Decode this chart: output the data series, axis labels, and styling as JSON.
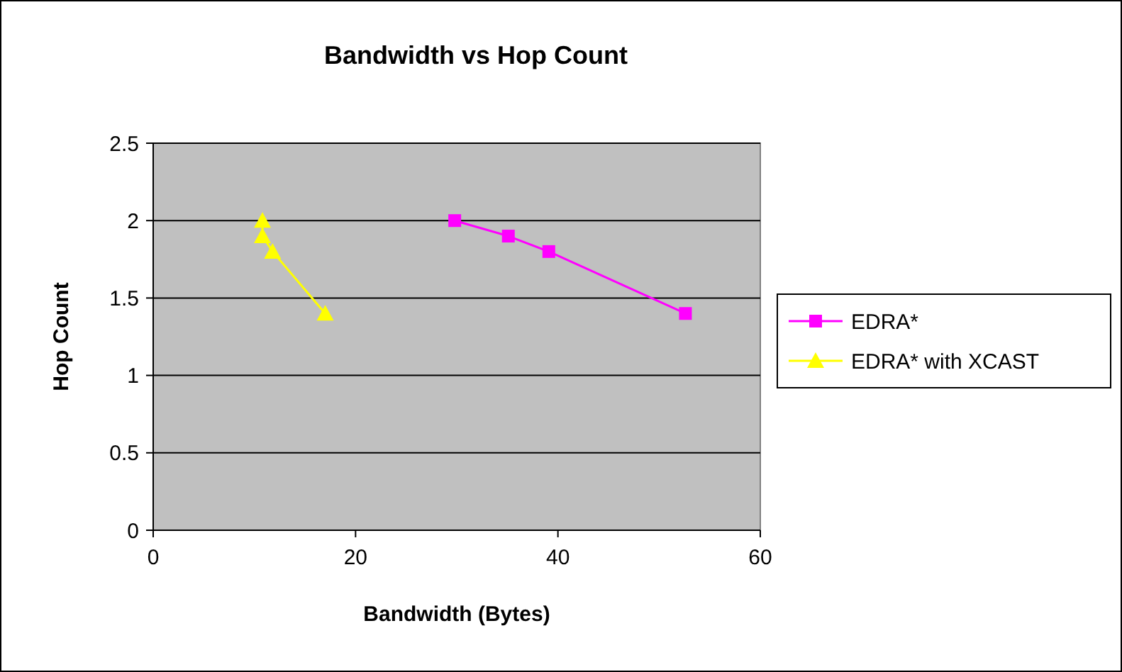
{
  "chart_data": {
    "type": "line",
    "title": "Bandwidth vs Hop Count",
    "xlabel": "Bandwidth (Bytes)",
    "ylabel": "Hop Count",
    "xlim": [
      0,
      60
    ],
    "xticks": [
      0,
      20,
      40,
      60
    ],
    "ylim": [
      0,
      2.5
    ],
    "yticks": [
      0,
      0.5,
      1,
      1.5,
      2,
      2.5
    ],
    "grid": "y",
    "legend": "right",
    "line_style": "solid",
    "series": [
      {
        "name": "EDRA*",
        "color": "#ff00ff",
        "marker": "square",
        "x": [
          29.8,
          35.1,
          39.1,
          52.6
        ],
        "values": [
          2.0,
          1.9,
          1.8,
          1.4
        ]
      },
      {
        "name": "EDRA* with XCAST",
        "color": "#ffff00",
        "marker": "triangle",
        "x": [
          10.8,
          10.8,
          11.8,
          17.0
        ],
        "values": [
          2.0,
          1.9,
          1.8,
          1.4
        ]
      }
    ]
  }
}
